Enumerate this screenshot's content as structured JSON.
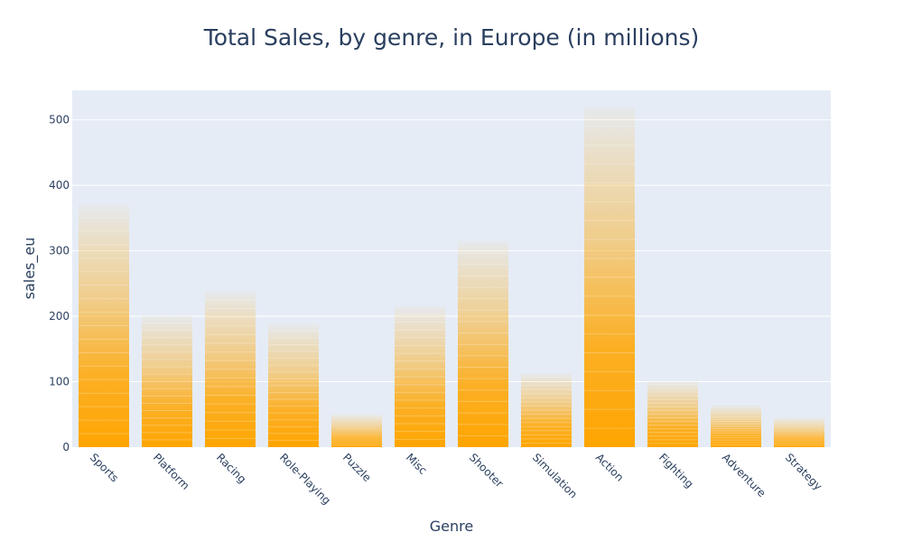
{
  "chart_data": {
    "type": "bar",
    "title": "Total Sales, by genre, in Europe (in millions)",
    "xlabel": "Genre",
    "ylabel": "sales_eu",
    "categories": [
      "Sports",
      "Platform",
      "Racing",
      "Role-Playing",
      "Puzzle",
      "Misc",
      "Shooter",
      "Simulation",
      "Action",
      "Fighting",
      "Adventure",
      "Strategy"
    ],
    "values": [
      371,
      201,
      238,
      188,
      50,
      215,
      314,
      113,
      519,
      101,
      64,
      45
    ],
    "ylim": [
      0,
      545
    ],
    "yticks": [
      0,
      100,
      200,
      300,
      400,
      500
    ],
    "grid": true,
    "legend": "none",
    "colors": {
      "bar": "#FFA500",
      "plot_bg": "#E5ECF6",
      "grid": "#FFFFFF",
      "text": "#2a3f5f"
    }
  }
}
